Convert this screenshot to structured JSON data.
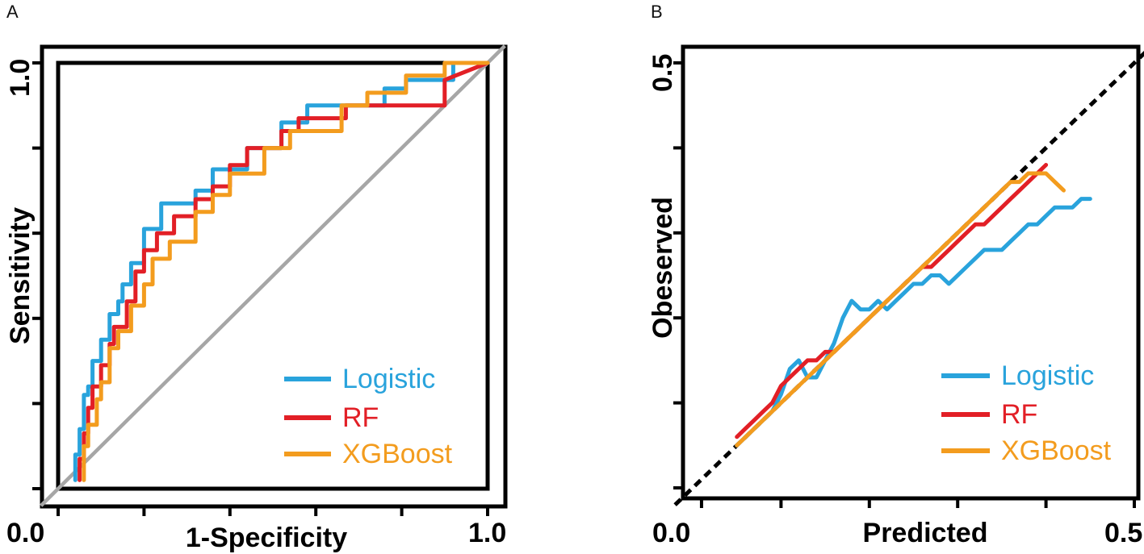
{
  "chart_data": [
    {
      "panel": "A",
      "type": "line",
      "title": "",
      "xlabel": "1-Specificity",
      "ylabel": "Sensitivity",
      "xlim": [
        0,
        1
      ],
      "ylim": [
        0,
        1
      ],
      "x_tick_labels": [
        "0.0",
        "1.0"
      ],
      "y_tick_labels": [
        "1.0"
      ],
      "legend_position": "bottom-right",
      "reference_color": "#a6a6a6",
      "series": [
        {
          "name": "Logistic",
          "color": "#29a3dc",
          "x": [
            0.04,
            0.04,
            0.05,
            0.05,
            0.06,
            0.06,
            0.07,
            0.07,
            0.08,
            0.08,
            0.1,
            0.1,
            0.12,
            0.12,
            0.14,
            0.14,
            0.15,
            0.15,
            0.17,
            0.17,
            0.2,
            0.2,
            0.24,
            0.24,
            0.32,
            0.32,
            0.36,
            0.36,
            0.44,
            0.44,
            0.52,
            0.52,
            0.58,
            0.58,
            0.76,
            0.76,
            0.81,
            0.81,
            0.92,
            0.92,
            1.0
          ],
          "y": [
            0.02,
            0.08,
            0.08,
            0.14,
            0.14,
            0.22,
            0.22,
            0.24,
            0.24,
            0.3,
            0.3,
            0.35,
            0.35,
            0.41,
            0.41,
            0.44,
            0.44,
            0.48,
            0.48,
            0.53,
            0.53,
            0.61,
            0.61,
            0.67,
            0.67,
            0.7,
            0.7,
            0.75,
            0.75,
            0.8,
            0.8,
            0.86,
            0.86,
            0.9,
            0.9,
            0.94,
            0.94,
            0.96,
            0.96,
            1.0,
            1.0
          ]
        },
        {
          "name": "RF",
          "color": "#e21f26",
          "x": [
            0.05,
            0.05,
            0.06,
            0.06,
            0.07,
            0.07,
            0.08,
            0.08,
            0.1,
            0.1,
            0.12,
            0.12,
            0.13,
            0.13,
            0.16,
            0.16,
            0.18,
            0.18,
            0.2,
            0.2,
            0.23,
            0.23,
            0.27,
            0.27,
            0.32,
            0.32,
            0.36,
            0.36,
            0.4,
            0.4,
            0.44,
            0.44,
            0.52,
            0.52,
            0.56,
            0.56,
            0.67,
            0.67,
            0.9,
            0.9,
            1.0
          ],
          "y": [
            0.02,
            0.07,
            0.07,
            0.13,
            0.13,
            0.19,
            0.19,
            0.24,
            0.24,
            0.29,
            0.29,
            0.34,
            0.34,
            0.38,
            0.38,
            0.44,
            0.44,
            0.51,
            0.51,
            0.56,
            0.56,
            0.6,
            0.6,
            0.64,
            0.64,
            0.68,
            0.68,
            0.71,
            0.71,
            0.76,
            0.76,
            0.8,
            0.8,
            0.84,
            0.84,
            0.87,
            0.87,
            0.9,
            0.9,
            0.96,
            1.0
          ]
        },
        {
          "name": "XGBoost",
          "color": "#f39c1e",
          "x": [
            0.06,
            0.06,
            0.07,
            0.07,
            0.09,
            0.09,
            0.1,
            0.1,
            0.12,
            0.12,
            0.14,
            0.14,
            0.17,
            0.17,
            0.2,
            0.2,
            0.22,
            0.22,
            0.26,
            0.26,
            0.32,
            0.32,
            0.36,
            0.36,
            0.4,
            0.4,
            0.48,
            0.48,
            0.54,
            0.54,
            0.66,
            0.66,
            0.72,
            0.72,
            0.81,
            0.81,
            0.9,
            0.9,
            1.0
          ],
          "y": [
            0.02,
            0.1,
            0.1,
            0.15,
            0.15,
            0.21,
            0.21,
            0.25,
            0.25,
            0.33,
            0.33,
            0.37,
            0.37,
            0.43,
            0.43,
            0.48,
            0.48,
            0.54,
            0.54,
            0.58,
            0.58,
            0.65,
            0.65,
            0.69,
            0.69,
            0.74,
            0.74,
            0.8,
            0.8,
            0.84,
            0.84,
            0.9,
            0.9,
            0.93,
            0.93,
            0.97,
            0.97,
            1.0,
            1.0
          ]
        }
      ]
    },
    {
      "panel": "B",
      "type": "line",
      "title": "",
      "xlabel": "Predicted",
      "ylabel": "Obeserved",
      "xlim": [
        0,
        0.5
      ],
      "ylim": [
        0,
        0.5
      ],
      "x_tick_labels": [
        "0.0",
        "0.5"
      ],
      "y_tick_labels": [
        "0.5"
      ],
      "legend_position": "bottom-right",
      "reference_color": "#000000",
      "series": [
        {
          "name": "Logistic",
          "color": "#29a3dc",
          "x": [
            0.05,
            0.06,
            0.07,
            0.08,
            0.09,
            0.1,
            0.11,
            0.12,
            0.13,
            0.14,
            0.15,
            0.16,
            0.17,
            0.18,
            0.19,
            0.2,
            0.21,
            0.22,
            0.23,
            0.24,
            0.25,
            0.26,
            0.27,
            0.28,
            0.29,
            0.3,
            0.31,
            0.32,
            0.33,
            0.34,
            0.35,
            0.36,
            0.37,
            0.38,
            0.39,
            0.4,
            0.41,
            0.42,
            0.43,
            0.44,
            0.45
          ],
          "y": [
            0.05,
            0.06,
            0.07,
            0.08,
            0.09,
            0.11,
            0.14,
            0.15,
            0.13,
            0.13,
            0.15,
            0.17,
            0.2,
            0.22,
            0.21,
            0.21,
            0.22,
            0.21,
            0.22,
            0.23,
            0.24,
            0.24,
            0.25,
            0.25,
            0.24,
            0.25,
            0.26,
            0.27,
            0.28,
            0.28,
            0.28,
            0.29,
            0.3,
            0.31,
            0.31,
            0.32,
            0.33,
            0.33,
            0.33,
            0.34,
            0.34
          ]
        },
        {
          "name": "RF",
          "color": "#e21f26",
          "x": [
            0.05,
            0.06,
            0.07,
            0.08,
            0.09,
            0.1,
            0.11,
            0.12,
            0.13,
            0.14,
            0.15,
            0.16,
            0.17,
            0.18,
            0.19,
            0.2,
            0.21,
            0.22,
            0.23,
            0.24,
            0.25,
            0.26,
            0.27,
            0.28,
            0.29,
            0.3,
            0.31,
            0.32,
            0.33,
            0.34,
            0.35,
            0.36,
            0.37,
            0.38,
            0.39,
            0.4
          ],
          "y": [
            0.06,
            0.07,
            0.08,
            0.09,
            0.1,
            0.12,
            0.13,
            0.14,
            0.15,
            0.15,
            0.16,
            0.16,
            0.17,
            0.18,
            0.19,
            0.2,
            0.21,
            0.22,
            0.23,
            0.24,
            0.25,
            0.26,
            0.26,
            0.27,
            0.28,
            0.29,
            0.3,
            0.31,
            0.31,
            0.32,
            0.33,
            0.34,
            0.35,
            0.36,
            0.37,
            0.38
          ]
        },
        {
          "name": "XGBoost",
          "color": "#f39c1e",
          "x": [
            0.05,
            0.06,
            0.07,
            0.08,
            0.09,
            0.1,
            0.11,
            0.12,
            0.13,
            0.14,
            0.15,
            0.16,
            0.17,
            0.18,
            0.19,
            0.2,
            0.21,
            0.22,
            0.23,
            0.24,
            0.25,
            0.26,
            0.27,
            0.28,
            0.29,
            0.3,
            0.31,
            0.32,
            0.33,
            0.34,
            0.35,
            0.36,
            0.37,
            0.38,
            0.39,
            0.4,
            0.41,
            0.42
          ],
          "y": [
            0.05,
            0.06,
            0.07,
            0.08,
            0.09,
            0.1,
            0.11,
            0.12,
            0.13,
            0.14,
            0.15,
            0.16,
            0.17,
            0.18,
            0.19,
            0.2,
            0.21,
            0.22,
            0.23,
            0.24,
            0.25,
            0.26,
            0.27,
            0.28,
            0.29,
            0.3,
            0.31,
            0.32,
            0.33,
            0.34,
            0.35,
            0.36,
            0.36,
            0.37,
            0.37,
            0.37,
            0.36,
            0.35
          ]
        }
      ]
    }
  ]
}
